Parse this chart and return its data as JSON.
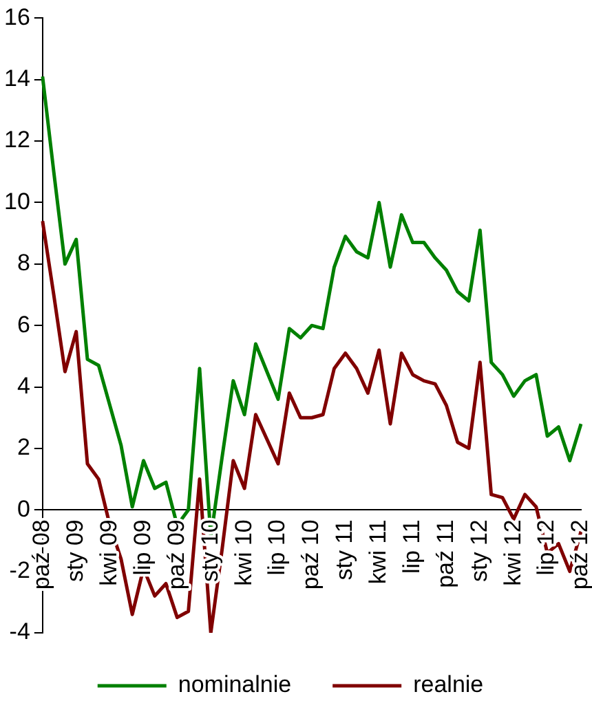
{
  "chart_data": {
    "type": "line",
    "categories": [
      "paź 08",
      null,
      null,
      "sty 09",
      null,
      null,
      "kwi 09",
      null,
      null,
      "lip 09",
      null,
      null,
      "paź 09",
      null,
      null,
      "sty 10",
      null,
      null,
      "kwi 10",
      null,
      null,
      "lip 10",
      null,
      null,
      "paź 10",
      null,
      null,
      "sty 11",
      null,
      null,
      "kwi 11",
      null,
      null,
      "lip 11",
      null,
      null,
      "paź 11",
      null,
      null,
      "sty 12",
      null,
      null,
      "kwi 12",
      null,
      null,
      "lip 12",
      null,
      null,
      "paź 12"
    ],
    "series": [
      {
        "name": "nominalnie",
        "color": "#008000",
        "values": [
          14.1,
          11.0,
          8.0,
          8.8,
          4.9,
          4.7,
          3.4,
          2.1,
          0.1,
          1.6,
          0.7,
          0.9,
          -0.5,
          0.0,
          4.6,
          -0.9,
          1.7,
          4.2,
          3.1,
          5.4,
          4.5,
          3.6,
          5.9,
          5.6,
          6.0,
          5.9,
          7.9,
          8.9,
          8.4,
          8.2,
          10.0,
          7.9,
          9.6,
          8.7,
          8.7,
          8.2,
          7.8,
          7.1,
          6.8,
          9.1,
          4.8,
          4.4,
          3.7,
          4.2,
          4.4,
          2.4,
          2.7,
          1.6,
          2.8
        ]
      },
      {
        "name": "realnie",
        "color": "#800000",
        "values": [
          9.4,
          7.0,
          4.5,
          5.8,
          1.5,
          1.0,
          -0.5,
          -1.6,
          -3.4,
          -1.9,
          -2.8,
          -2.4,
          -3.5,
          -3.3,
          1.0,
          -4.0,
          -1.3,
          1.6,
          0.7,
          3.1,
          2.3,
          1.5,
          3.8,
          3.0,
          3.0,
          3.1,
          4.6,
          5.1,
          4.6,
          3.8,
          5.2,
          2.8,
          5.1,
          4.4,
          4.2,
          4.1,
          3.4,
          2.2,
          2.0,
          4.8,
          0.5,
          0.4,
          -0.3,
          0.5,
          0.1,
          -1.4,
          -1.1,
          -2.0,
          -0.7
        ]
      }
    ],
    "ylim": [
      -4,
      16
    ],
    "yticks": [
      -4,
      -2,
      0,
      2,
      4,
      6,
      8,
      10,
      12,
      14,
      16
    ],
    "grid": false,
    "legend": "bottom",
    "marker": "none",
    "line_style": "solid"
  }
}
